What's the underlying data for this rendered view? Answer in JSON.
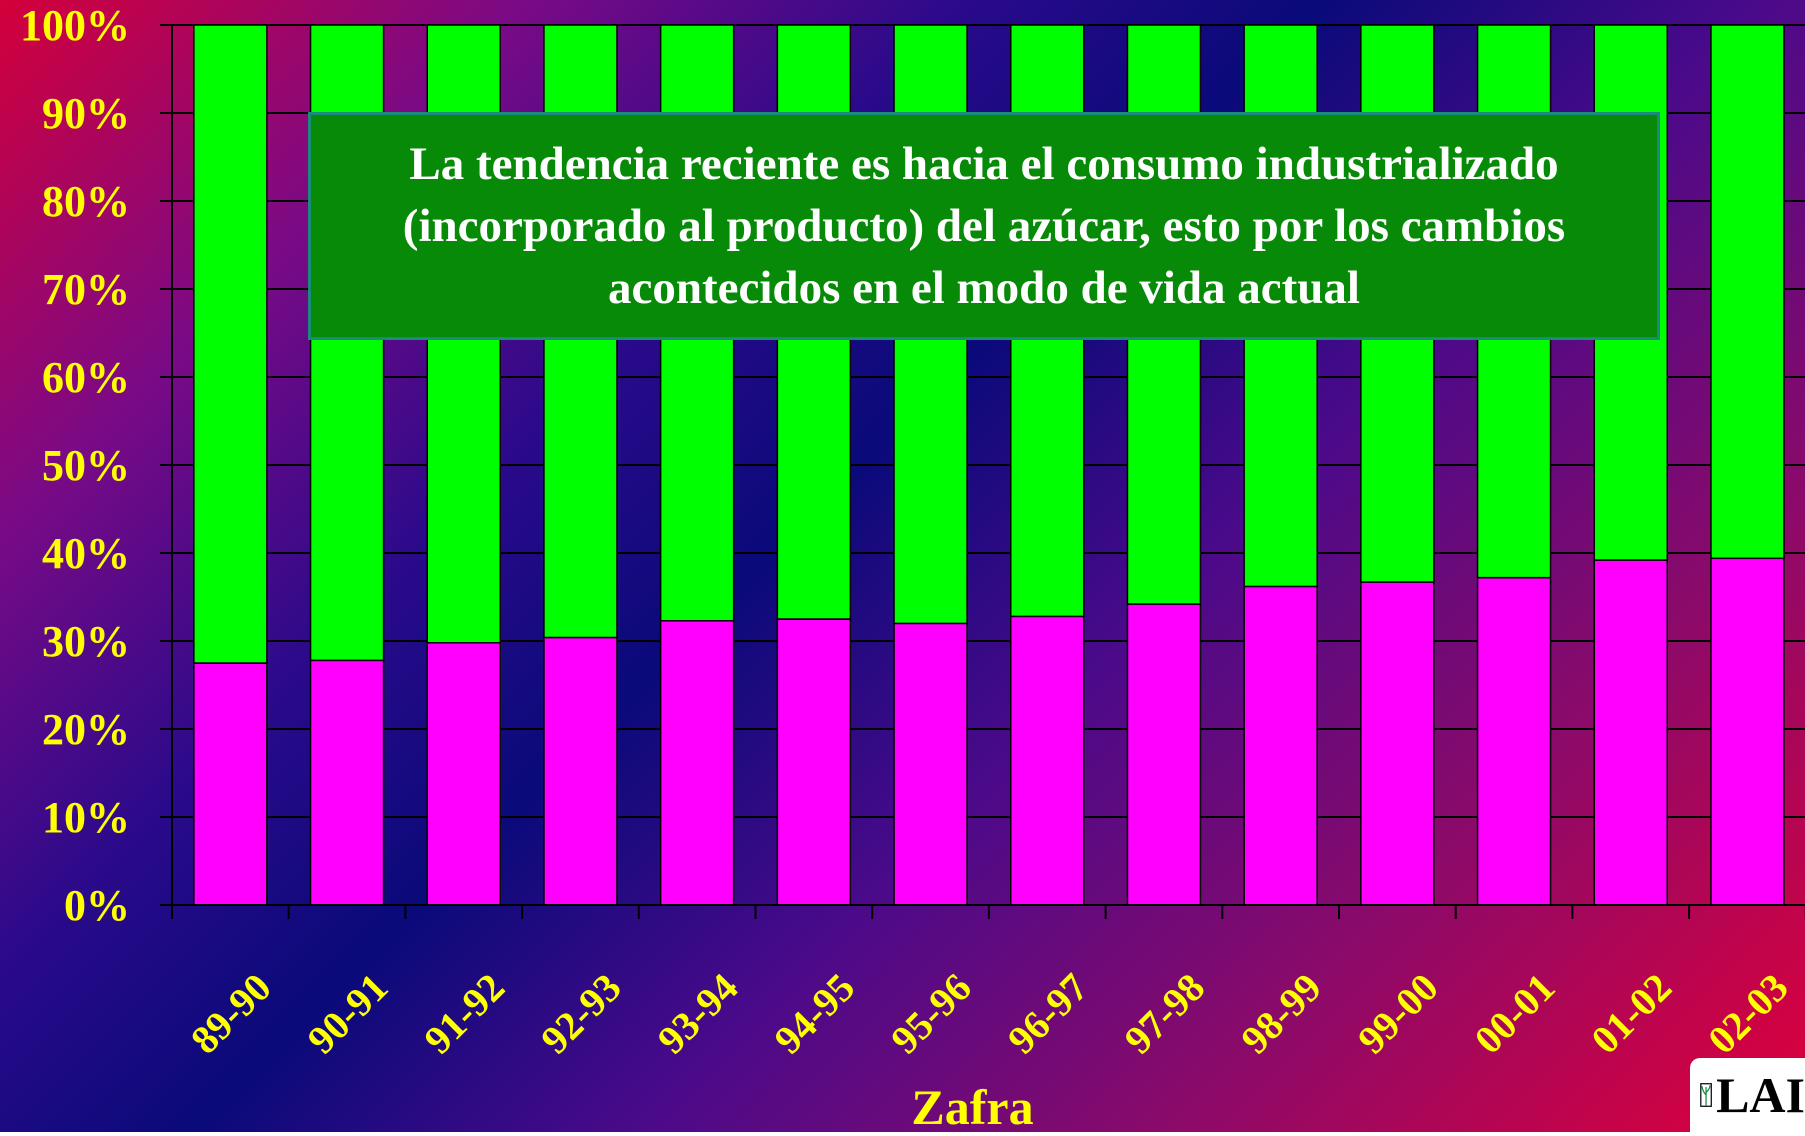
{
  "chart_data": {
    "type": "bar",
    "stacked": true,
    "normalized": true,
    "categories": [
      "89-90",
      "90-91",
      "91-92",
      "92-93",
      "93-94",
      "94-95",
      "95-96",
      "96-97",
      "97-98",
      "98-99",
      "99-00",
      "00-01",
      "01-02",
      "02-03"
    ],
    "series": [
      {
        "color": "#ff00ff",
        "values": [
          27.5,
          27.8,
          29.8,
          30.4,
          32.3,
          32.5,
          32.0,
          32.8,
          34.2,
          36.2,
          36.7,
          37.2,
          39.2,
          39.4
        ]
      },
      {
        "color": "#00ff00",
        "values": [
          72.5,
          72.2,
          70.2,
          69.6,
          67.7,
          67.5,
          68.0,
          67.2,
          65.8,
          63.8,
          63.3,
          62.8,
          60.8,
          60.6
        ]
      }
    ],
    "y_ticks": [
      "0%",
      "10%",
      "20%",
      "30%",
      "40%",
      "50%",
      "60%",
      "70%",
      "80%",
      "90%",
      "100%"
    ],
    "ylim": [
      0,
      100
    ],
    "grid": true,
    "xlabel": "Zafra"
  },
  "annotation": {
    "text": "La tendencia reciente es hacia el consumo industrializado (incorporado al producto) del azúcar, esto por los cambios acontecidos en  el modo de vida actual"
  },
  "logo": {
    "text": "LAI"
  }
}
